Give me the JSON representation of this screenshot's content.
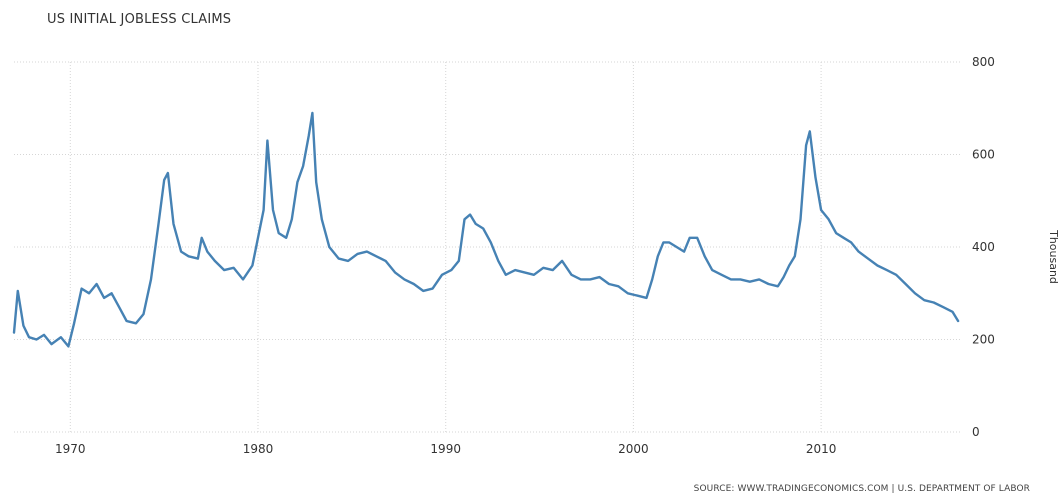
{
  "chart_data": {
    "type": "line",
    "title": "US INITIAL JOBLESS CLAIMS",
    "ylabel": "Thousand",
    "xlabel": "",
    "ylim": [
      0,
      800
    ],
    "xlim": [
      1967,
      2017.4
    ],
    "x_ticks": [
      "1970",
      "1980",
      "1990",
      "2000",
      "2010"
    ],
    "y_ticks": [
      "0",
      "200",
      "400",
      "600",
      "800"
    ],
    "grid": true,
    "series": [
      {
        "color": "#4682b4",
        "x": [
          1967.0,
          1967.2,
          1967.5,
          1967.8,
          1968.2,
          1968.6,
          1969.0,
          1969.5,
          1969.9,
          1970.2,
          1970.6,
          1971.0,
          1971.4,
          1971.8,
          1972.2,
          1972.6,
          1973.0,
          1973.5,
          1973.9,
          1974.3,
          1974.7,
          1975.0,
          1975.2,
          1975.5,
          1975.9,
          1976.3,
          1976.8,
          1977.0,
          1977.3,
          1977.7,
          1978.2,
          1978.7,
          1979.2,
          1979.7,
          1980.0,
          1980.3,
          1980.5,
          1980.8,
          1981.1,
          1981.5,
          1981.8,
          1982.1,
          1982.4,
          1982.7,
          1982.9,
          1983.1,
          1983.4,
          1983.8,
          1984.3,
          1984.8,
          1985.3,
          1985.8,
          1986.3,
          1986.8,
          1987.3,
          1987.8,
          1988.3,
          1988.8,
          1989.3,
          1989.8,
          1990.3,
          1990.7,
          1991.0,
          1991.3,
          1991.6,
          1992.0,
          1992.4,
          1992.8,
          1993.2,
          1993.7,
          1994.2,
          1994.7,
          1995.2,
          1995.7,
          1996.2,
          1996.7,
          1997.2,
          1997.7,
          1998.2,
          1998.7,
          1999.2,
          1999.7,
          2000.2,
          2000.7,
          2001.0,
          2001.3,
          2001.6,
          2001.9,
          2002.3,
          2002.7,
          2003.0,
          2003.4,
          2003.8,
          2004.2,
          2004.7,
          2005.2,
          2005.7,
          2006.2,
          2006.7,
          2007.2,
          2007.7,
          2008.0,
          2008.3,
          2008.6,
          2008.9,
          2009.2,
          2009.4,
          2009.7,
          2010.0,
          2010.4,
          2010.8,
          2011.2,
          2011.6,
          2012.0,
          2012.5,
          2013.0,
          2013.5,
          2014.0,
          2014.5,
          2015.0,
          2015.5,
          2016.0,
          2016.5,
          2017.0,
          2017.3
        ],
        "values": [
          215,
          305,
          230,
          205,
          200,
          210,
          190,
          205,
          185,
          235,
          310,
          300,
          320,
          290,
          300,
          270,
          240,
          235,
          255,
          330,
          450,
          545,
          560,
          450,
          390,
          380,
          375,
          420,
          390,
          370,
          350,
          355,
          330,
          360,
          420,
          480,
          630,
          480,
          430,
          420,
          460,
          540,
          575,
          640,
          690,
          540,
          460,
          400,
          375,
          370,
          385,
          390,
          380,
          370,
          345,
          330,
          320,
          305,
          310,
          340,
          350,
          370,
          460,
          470,
          450,
          440,
          410,
          370,
          340,
          350,
          345,
          340,
          355,
          350,
          370,
          340,
          330,
          330,
          335,
          320,
          315,
          300,
          295,
          290,
          330,
          380,
          410,
          410,
          400,
          390,
          420,
          420,
          380,
          350,
          340,
          330,
          330,
          325,
          330,
          320,
          315,
          335,
          360,
          380,
          460,
          620,
          650,
          550,
          480,
          460,
          430,
          420,
          410,
          390,
          375,
          360,
          350,
          340,
          320,
          300,
          285,
          280,
          270,
          260,
          240
        ]
      }
    ]
  },
  "source_note": "SOURCE: WWW.TRADINGECONOMICS.COM | U.S. DEPARTMENT OF LABOR"
}
